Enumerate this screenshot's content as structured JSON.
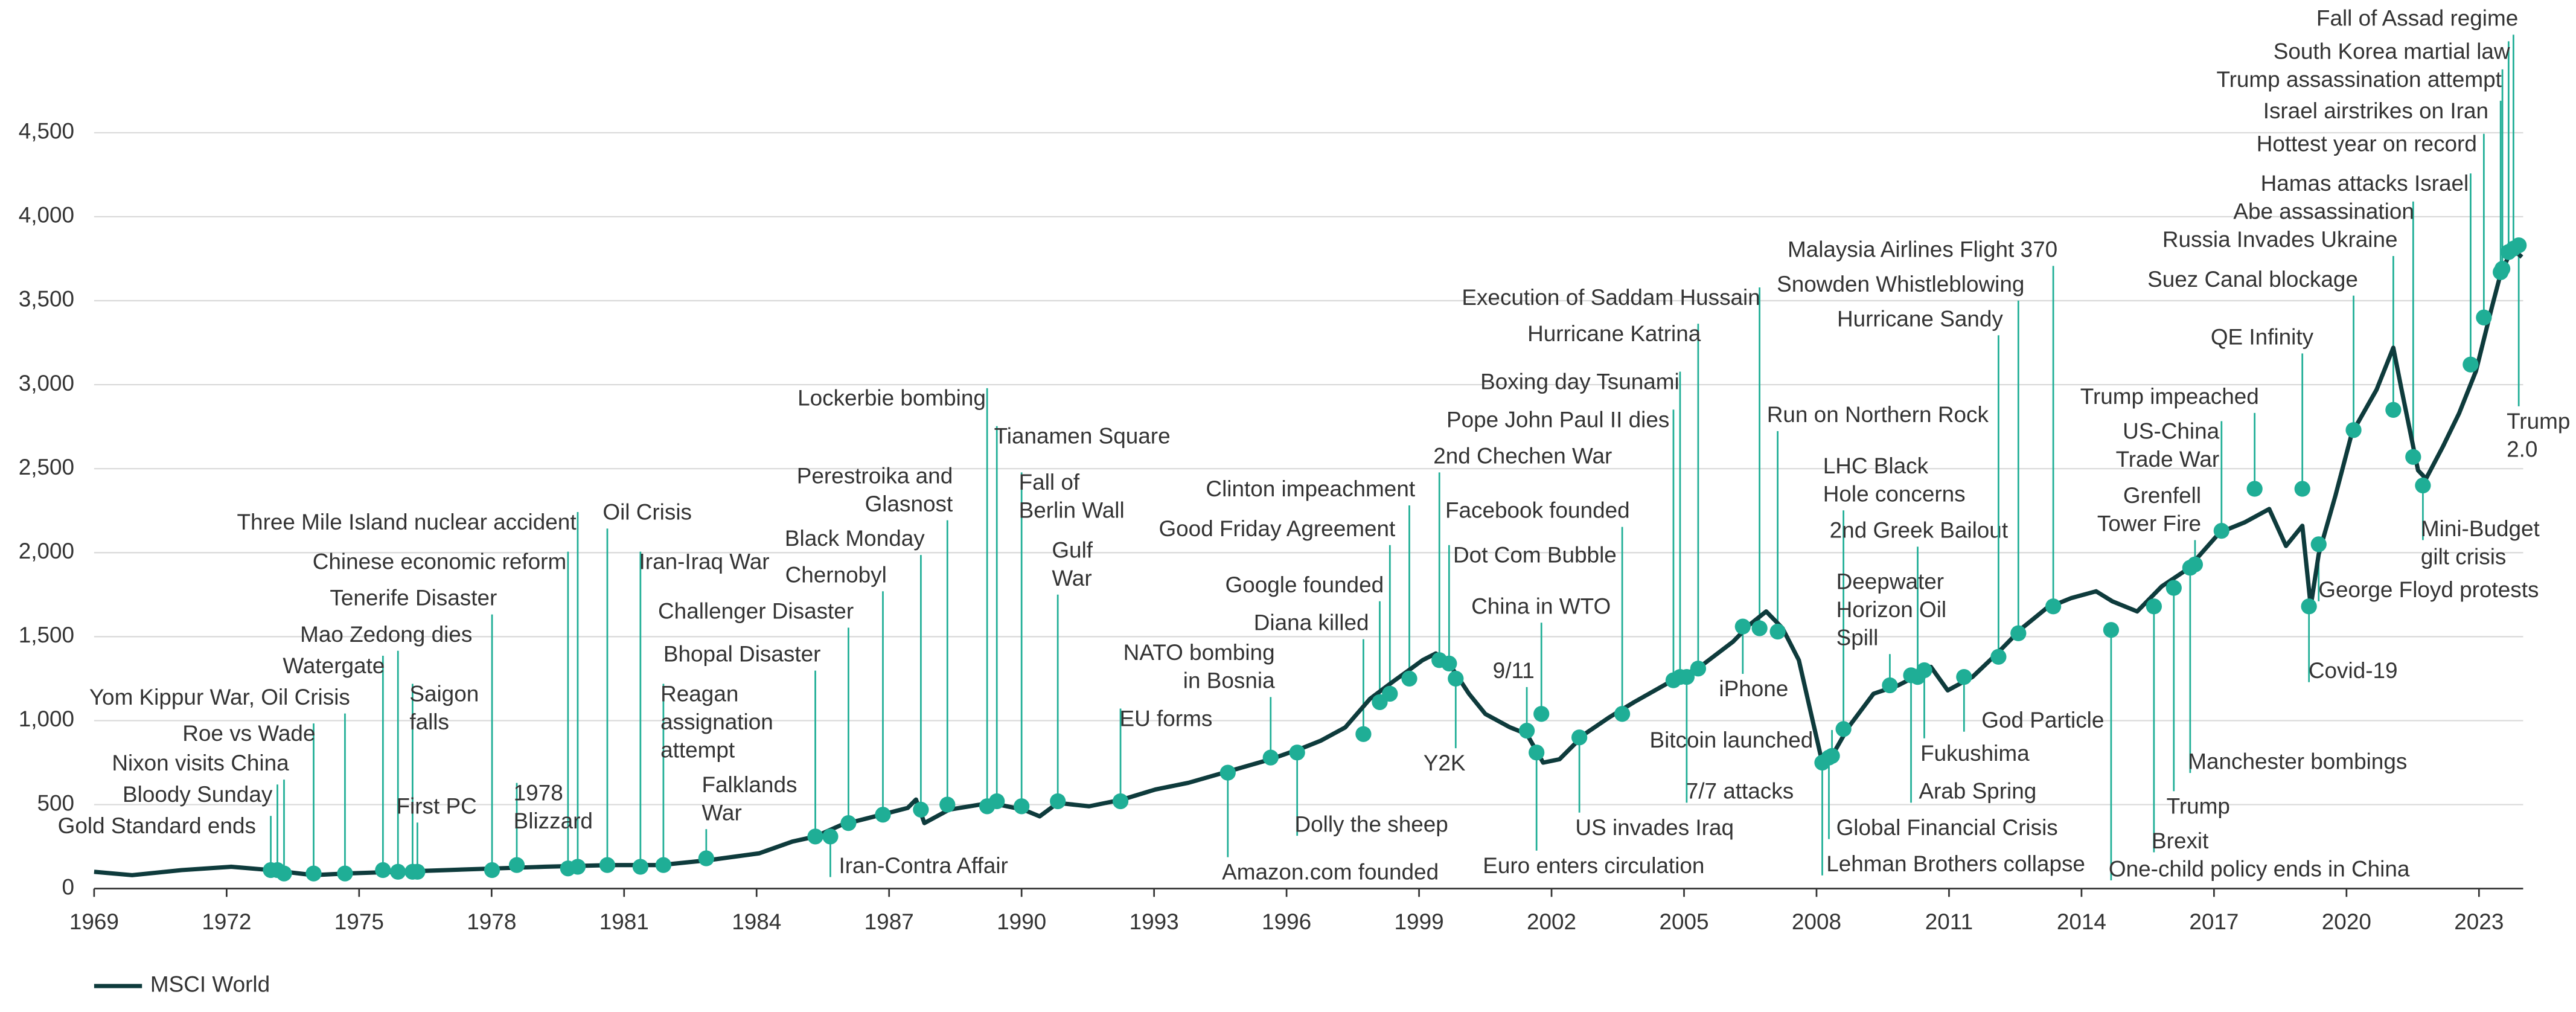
{
  "chart_data": {
    "type": "line",
    "series": [
      {
        "name": "MSCI World",
        "color": "#0e3b3c",
        "x": [
          1969.0,
          1969.86,
          1970.98,
          1972.1,
          1973.0,
          1973.97,
          1974.72,
          1975.84,
          1976.96,
          1978.08,
          1979.2,
          1980.7,
          1981.82,
          1982.94,
          1984.06,
          1984.81,
          1985.33,
          1985.93,
          1986.68,
          1987.42,
          1987.61,
          1987.8,
          1988.36,
          1989.29,
          1990.04,
          1990.41,
          1990.82,
          1991.53,
          1992.28,
          1993.03,
          1993.78,
          1994.71,
          1995.64,
          1996.39,
          1996.77,
          1997.33,
          1997.89,
          1998.45,
          1998.82,
          1999.08,
          1999.38,
          1999.68,
          2000.13,
          2000.5,
          2001.06,
          2001.44,
          2001.81,
          2002.18,
          2002.75,
          2003.31,
          2003.87,
          2004.61,
          2005.36,
          2006.11,
          2006.48,
          2006.86,
          2007.23,
          2007.6,
          2007.86,
          2008.13,
          2008.35,
          2008.72,
          2009.29,
          2009.85,
          2010.22,
          2010.59,
          2010.97,
          2011.53,
          2012.09,
          2012.65,
          2013.21,
          2013.77,
          2014.33,
          2014.7,
          2015.26,
          2015.82,
          2016.39,
          2017.13,
          2017.69,
          2018.25,
          2018.63,
          2019.0,
          2019.19,
          2019.37,
          2019.75,
          2020.12,
          2020.68,
          2021.06,
          2021.24,
          2021.62,
          2021.8,
          2022.18,
          2022.55,
          2022.93,
          2023.3,
          2023.49,
          2023.75,
          2023.97
        ],
        "values": [
          100,
          80,
          110,
          130,
          110,
          80,
          90,
          100,
          110,
          120,
          130,
          140,
          140,
          170,
          210,
          280,
          310,
          380,
          430,
          480,
          530,
          390,
          470,
          510,
          470,
          430,
          510,
          490,
          530,
          590,
          630,
          700,
          770,
          840,
          880,
          960,
          1130,
          1240,
          1310,
          1360,
          1400,
          1340,
          1160,
          1040,
          960,
          920,
          750,
          770,
          920,
          1020,
          1110,
          1220,
          1320,
          1470,
          1570,
          1650,
          1550,
          1360,
          1060,
          750,
          790,
          960,
          1160,
          1210,
          1260,
          1320,
          1180,
          1260,
          1400,
          1550,
          1670,
          1730,
          1770,
          1710,
          1650,
          1800,
          1900,
          2120,
          2180,
          2260,
          2040,
          2160,
          1680,
          1990,
          2340,
          2710,
          2970,
          3220,
          2980,
          2490,
          2440,
          2630,
          2830,
          3080,
          3470,
          3660,
          3810,
          3760
        ]
      }
    ],
    "xlim": [
      1969,
      2024
    ],
    "ylim": [
      0,
      5290
    ],
    "xticks": [
      1969,
      1972,
      1975,
      1978,
      1981,
      1984,
      1987,
      1990,
      1993,
      1996,
      1999,
      2002,
      2005,
      2008,
      2011,
      2014,
      2017,
      2020,
      2023
    ],
    "yticks": [
      0,
      500,
      {
        "value": 1000,
        "label": "1,000"
      },
      {
        "value": 1500,
        "label": "1,500"
      },
      {
        "value": 2000,
        "label": "2,000"
      },
      {
        "value": 2500,
        "label": "2,500"
      },
      {
        "value": 3000,
        "label": "3,000"
      },
      {
        "value": 3500,
        "label": "3,500"
      },
      {
        "value": 4000,
        "label": "4,000"
      },
      {
        "value": 4500,
        "label": "4,500"
      }
    ],
    "grid": true,
    "legend": "bottom-left",
    "annotation_color": "#1fae96",
    "annotations": [
      {
        "label": [
          "Gold Standard ends"
        ],
        "x": 1973.0,
        "y": 110
      },
      {
        "label": [
          "Bloody Sunday"
        ],
        "x": 1973.15,
        "y": 110
      },
      {
        "label": [
          "Nixon visits China"
        ],
        "x": 1973.3,
        "y": 90
      },
      {
        "label": [
          "Roe vs Wade"
        ],
        "x": 1973.97,
        "y": 90
      },
      {
        "label": [
          "Yom Kippur War, Oil Crisis"
        ],
        "x": 1974.68,
        "y": 90
      },
      {
        "label": [
          "Watergate"
        ],
        "x": 1975.54,
        "y": 110
      },
      {
        "label": [
          "Mao Zedong dies"
        ],
        "x": 1975.88,
        "y": 100
      },
      {
        "label": [
          "Saigon",
          "falls"
        ],
        "x": 1976.21,
        "y": 100
      },
      {
        "label": [
          "First PC"
        ],
        "x": 1976.32,
        "y": 100
      },
      {
        "label": [
          "Tenerife Disaster"
        ],
        "x": 1978.01,
        "y": 110
      },
      {
        "label": [
          "Chinese economic reform"
        ],
        "x": 1979.73,
        "y": 120
      },
      {
        "label": [
          "Three Mile Island nuclear accident"
        ],
        "x": 1979.95,
        "y": 130
      },
      {
        "label": [
          "1978",
          "Blizzard"
        ],
        "x": 1978.57,
        "y": 140
      },
      {
        "label": [
          "Oil Crisis"
        ],
        "x": 1980.62,
        "y": 140
      },
      {
        "label": [
          "Iran-Iraq War"
        ],
        "x": 1981.37,
        "y": 130
      },
      {
        "label": [
          "Reagan",
          "assignation",
          "attempt"
        ],
        "x": 1981.89,
        "y": 140
      },
      {
        "label": [
          "Falklands",
          "War"
        ],
        "x": 1982.86,
        "y": 180
      },
      {
        "label": [
          "Bhopal Disaster"
        ],
        "x": 1985.33,
        "y": 310
      },
      {
        "label": [
          "Iran-Contra Affair"
        ],
        "x": 1985.67,
        "y": 310
      },
      {
        "label": [
          "Challenger Disaster"
        ],
        "x": 1986.08,
        "y": 390
      },
      {
        "label": [
          "Chernobyl"
        ],
        "x": 1986.86,
        "y": 440
      },
      {
        "label": [
          "Black Monday"
        ],
        "x": 1987.72,
        "y": 470
      },
      {
        "label": [
          "Perestroika and",
          "Glasnost"
        ],
        "x": 1988.32,
        "y": 500
      },
      {
        "label": [
          "Lockerbie bombing"
        ],
        "x": 1989.22,
        "y": 490
      },
      {
        "label": [
          "Tianamen Square"
        ],
        "x": 1989.44,
        "y": 520
      },
      {
        "label": [
          "Fall of",
          "Berlin Wall"
        ],
        "x": 1990.0,
        "y": 490
      },
      {
        "label": [
          "Gulf",
          "War"
        ],
        "x": 1990.82,
        "y": 520
      },
      {
        "label": [
          "EU forms"
        ],
        "x": 1992.24,
        "y": 520
      },
      {
        "label": [
          "NATO bombing",
          "in Bosnia"
        ],
        "x": 1995.64,
        "y": 780
      },
      {
        "label": [
          "Amazon.com founded"
        ],
        "x": 1994.67,
        "y": 690
      },
      {
        "label": [
          "Dolly the sheep"
        ],
        "x": 1996.24,
        "y": 810
      },
      {
        "label": [
          "Diana killed"
        ],
        "x": 1997.74,
        "y": 920
      },
      {
        "label": [
          "Google founded"
        ],
        "x": 1998.11,
        "y": 1110
      },
      {
        "label": [
          "Good Friday Agreement"
        ],
        "x": 1998.34,
        "y": 1160
      },
      {
        "label": [
          "Clinton impeachment"
        ],
        "x": 1998.78,
        "y": 1250
      },
      {
        "label": [
          "Y2K"
        ],
        "x": 1999.83,
        "y": 1250
      },
      {
        "label": [
          "2nd Chechen War"
        ],
        "x": 1999.46,
        "y": 1360
      },
      {
        "label": [
          "Dot Com Bubble"
        ],
        "x": 1999.68,
        "y": 1340
      },
      {
        "label": [
          "Facebook founded"
        ],
        "x": 2003.6,
        "y": 1040
      },
      {
        "label": [
          "China in WTO"
        ],
        "x": 2001.77,
        "y": 1040
      },
      {
        "label": [
          "9/11"
        ],
        "x": 2001.44,
        "y": 940
      },
      {
        "label": [
          "Euro enters circulation"
        ],
        "x": 2001.66,
        "y": 810
      },
      {
        "label": [
          "US invades Iraq"
        ],
        "x": 2002.63,
        "y": 900
      },
      {
        "label": [
          "Pope John Paul II dies"
        ],
        "x": 2004.76,
        "y": 1240
      },
      {
        "label": [
          "Boxing day Tsunami"
        ],
        "x": 2004.91,
        "y": 1260
      },
      {
        "label": [
          "Hurricane Katrina"
        ],
        "x": 2005.32,
        "y": 1310
      },
      {
        "label": [
          "Execution of Saddam Hussain"
        ],
        "x": 2006.71,
        "y": 1550
      },
      {
        "label": [
          "Run on Northern Rock"
        ],
        "x": 2007.12,
        "y": 1530
      },
      {
        "label": [
          "iPhone"
        ],
        "x": 2006.33,
        "y": 1560
      },
      {
        "label": [
          "Bitcoin launched"
        ],
        "x": 2008.35,
        "y": 790
      },
      {
        "label": [
          "7/7 attacks"
        ],
        "x": 2005.06,
        "y": 1260
      },
      {
        "label": [
          "Global Financial Crisis"
        ],
        "x": 2008.28,
        "y": 780
      },
      {
        "label": [
          "Lehman Brothers collapse"
        ],
        "x": 2008.13,
        "y": 750
      },
      {
        "label": [
          "LHC Black",
          "Hole concerns"
        ],
        "x": 2008.61,
        "y": 950
      },
      {
        "label": [
          "2nd Greek Bailout"
        ],
        "x": 2010.29,
        "y": 1260
      },
      {
        "label": [
          "Deepwater",
          "Horizon Oil",
          "Spill"
        ],
        "x": 2009.66,
        "y": 1210
      },
      {
        "label": [
          "Fukushima"
        ],
        "x": 2010.44,
        "y": 1300
      },
      {
        "label": [
          "Arab Spring"
        ],
        "x": 2010.14,
        "y": 1270
      },
      {
        "label": [
          "God Particle"
        ],
        "x": 2011.34,
        "y": 1260
      },
      {
        "label": [
          "Hurricane Sandy"
        ],
        "x": 2012.12,
        "y": 1380
      },
      {
        "label": [
          "Snowden Whistleblowing"
        ],
        "x": 2012.57,
        "y": 1520
      },
      {
        "label": [
          "Malaysia Airlines Flight 370"
        ],
        "x": 2013.36,
        "y": 1680
      },
      {
        "label": [
          "One-child policy ends in China"
        ],
        "x": 2014.67,
        "y": 1540
      },
      {
        "label": [
          "Brexit"
        ],
        "x": 2015.64,
        "y": 1680
      },
      {
        "label": [
          "Trump"
        ],
        "x": 2016.09,
        "y": 1790
      },
      {
        "label": [
          "Manchester bombings"
        ],
        "x": 2016.46,
        "y": 1910
      },
      {
        "label": [
          "Grenfell",
          "Tower Fire"
        ],
        "x": 2016.57,
        "y": 1930
      },
      {
        "label": [
          "US-China",
          "Trade War"
        ],
        "x": 2017.17,
        "y": 2130
      },
      {
        "label": [
          "Trump impeached"
        ],
        "x": 2017.92,
        "y": 2380
      },
      {
        "label": [
          "QE Infinity"
        ],
        "x": 2019.0,
        "y": 2380
      },
      {
        "label": [
          "Covid-19"
        ],
        "x": 2019.15,
        "y": 1680
      },
      {
        "label": [
          "George Floyd protests"
        ],
        "x": 2019.37,
        "y": 2050
      },
      {
        "label": [
          "Suez Canal blockage"
        ],
        "x": 2020.16,
        "y": 2730
      },
      {
        "label": [
          "Russia Invades Ukraine"
        ],
        "x": 2021.06,
        "y": 2850
      },
      {
        "label": [
          "Abe assassination"
        ],
        "x": 2021.51,
        "y": 2570
      },
      {
        "label": [
          "Mini-Budget",
          "gilt crisis"
        ],
        "x": 2021.73,
        "y": 2400
      },
      {
        "label": [
          "Hamas attacks Israel"
        ],
        "x": 2022.81,
        "y": 3120
      },
      {
        "label": [
          "Hottest year on record"
        ],
        "x": 2023.11,
        "y": 3400
      },
      {
        "label": [
          "Israel airstrikes on Iran"
        ],
        "x": 2023.49,
        "y": 3670
      },
      {
        "label": [
          "Trump assassination attempt"
        ],
        "x": 2023.53,
        "y": 3690
      },
      {
        "label": [
          "South Korea martial law"
        ],
        "x": 2023.67,
        "y": 3790
      },
      {
        "label": [
          "Fall of Assad regime"
        ],
        "x": 2023.78,
        "y": 3810
      },
      {
        "label": [
          "Trump",
          "2.0"
        ],
        "x": 2023.9,
        "y": 3830
      }
    ]
  }
}
